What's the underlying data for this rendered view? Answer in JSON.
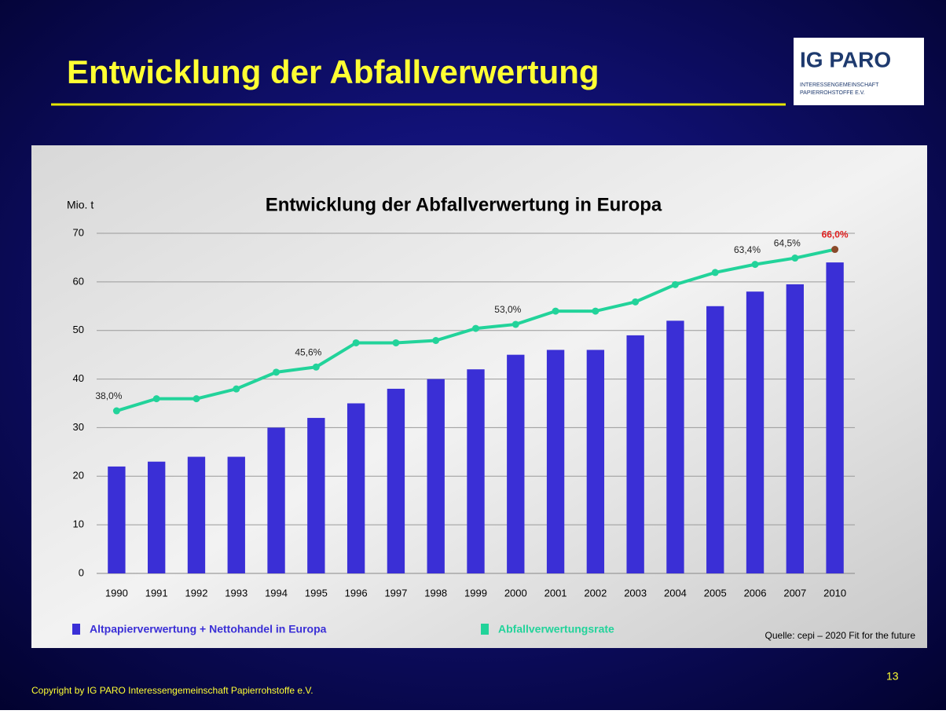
{
  "slide_title": "Entwicklung der Abfallverwertung",
  "logo": {
    "name": "IG PARO",
    "line1": "INTERESSENGEMEINSCHAFT",
    "line2": "PAPIERROHSTOFFE E.V."
  },
  "footer": "Copyright by IG PARO Interessengemeinschaft Papierrohstoffe e.V.",
  "page_number": "13",
  "chart_data": {
    "type": "bar+line",
    "title": "Entwicklung der Abfallverwertung in Europa",
    "y_label": "Mio. t",
    "source": "Quelle: cepi – 2020 Fit for the future",
    "categories": [
      "1990",
      "1991",
      "1992",
      "1993",
      "1994",
      "1995",
      "1996",
      "1997",
      "1998",
      "1999",
      "2000",
      "2001",
      "2002",
      "2003",
      "2004",
      "2005",
      "2006",
      "2007",
      "2010"
    ],
    "series": [
      {
        "name": "Altpapierverwertung + Nettohandel in Europa",
        "type": "bar",
        "color": "#3a2fd6",
        "values": [
          22,
          23,
          24,
          24,
          30,
          32,
          35,
          38,
          40,
          42,
          45,
          46,
          46,
          49,
          52,
          55,
          58,
          59.5,
          64
        ]
      },
      {
        "name": "Abfallverwertungsrate",
        "type": "line",
        "axis": "y2",
        "color": "#22d39a",
        "values": [
          38.0,
          40.1,
          40.1,
          41.8,
          44.7,
          45.6,
          49.8,
          49.8,
          50.2,
          52.3,
          53.0,
          55.3,
          55.3,
          56.9,
          59.9,
          62.0,
          63.4,
          64.5,
          66.0
        ],
        "value_labels": [
          "38,0%",
          null,
          null,
          null,
          null,
          "45,6%",
          null,
          null,
          null,
          null,
          "53,0%",
          null,
          null,
          null,
          null,
          null,
          "63,4%",
          "64,5%",
          "66,0%"
        ]
      }
    ],
    "ylim": [
      0,
      70
    ],
    "yticks": [
      0,
      10,
      20,
      30,
      40,
      50,
      60,
      70
    ],
    "y2lim": [
      9.8,
      68.8
    ],
    "grid": true
  }
}
